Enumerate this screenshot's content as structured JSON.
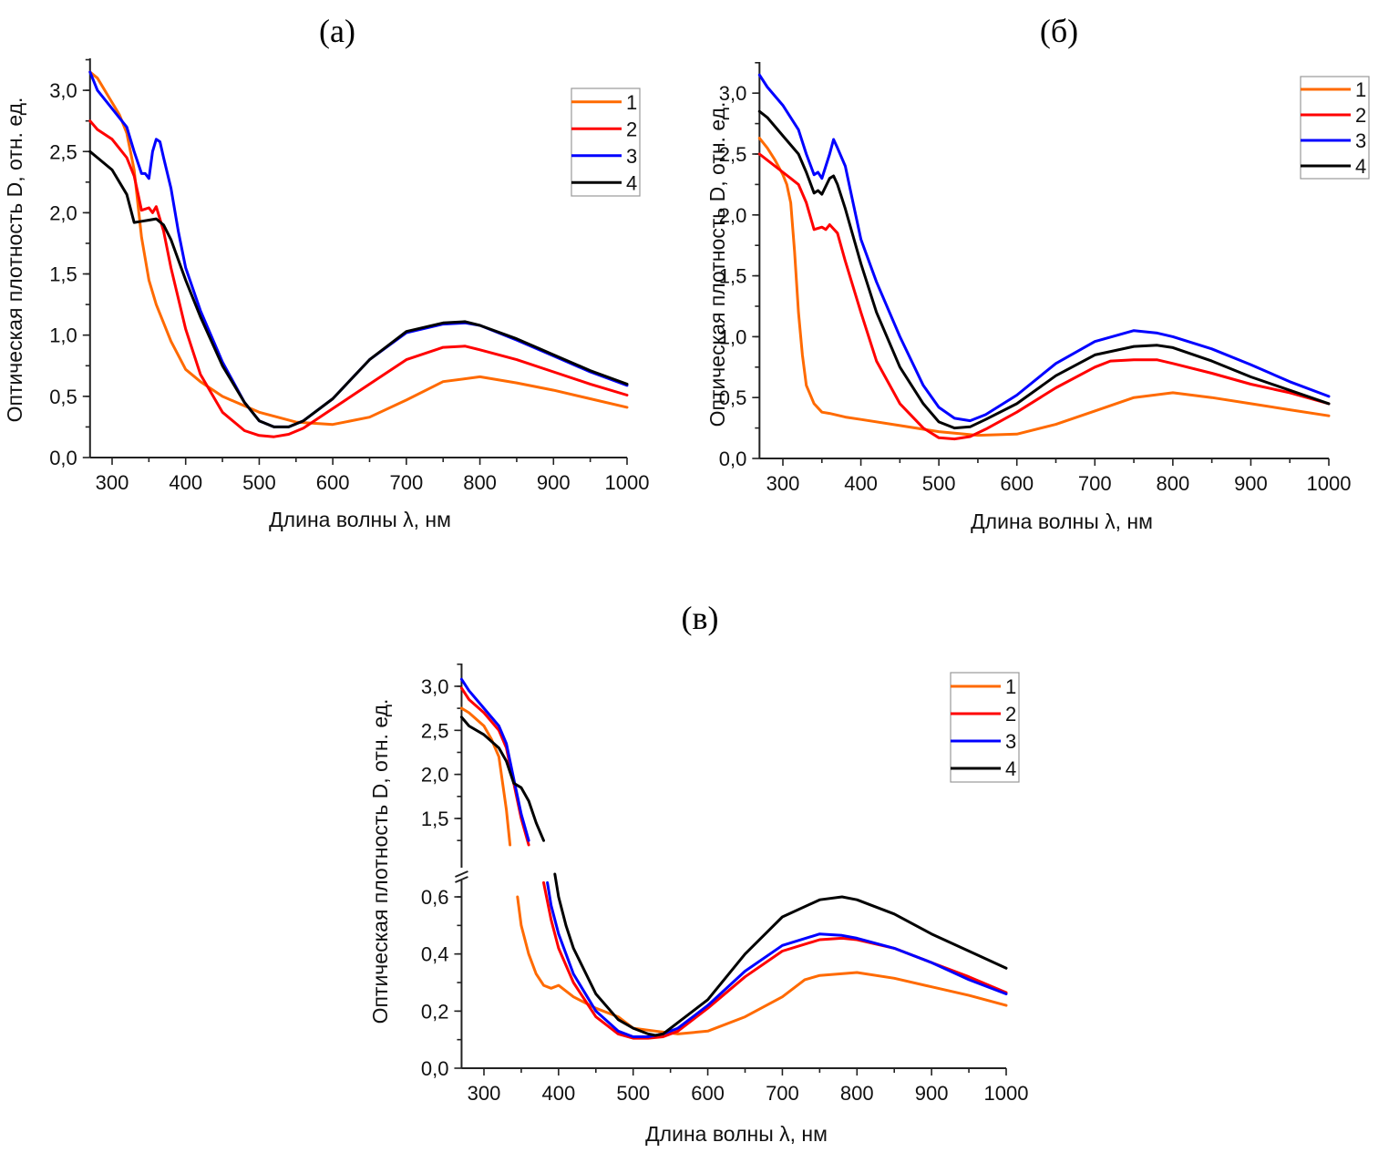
{
  "figure": {
    "colors": {
      "1": "#ff6a00",
      "2": "#ff0000",
      "3": "#0000ff",
      "4": "#000000"
    }
  },
  "chart_data": [
    {
      "type": "line",
      "panel_label": "(а)",
      "xlabel": "Длина волны λ, нм",
      "ylabel": "Оптическая плотность D, отн. ед.",
      "xlim": [
        270,
        1000
      ],
      "ylim": [
        0,
        3.25
      ],
      "xticks": [
        300,
        400,
        500,
        600,
        700,
        800,
        900,
        1000
      ],
      "xtick_labels": [
        "300",
        "400",
        "500",
        "600",
        "700",
        "800",
        "900",
        "1000"
      ],
      "yticks": [
        0,
        0.5,
        1.0,
        1.5,
        2.0,
        2.5,
        3.0
      ],
      "ytick_labels": [
        "0,0",
        "0,5",
        "1,0",
        "1,5",
        "2,0",
        "2,5",
        "3,0"
      ],
      "legend": [
        "1",
        "2",
        "3",
        "4"
      ],
      "legend_position": "top-right",
      "series": [
        {
          "name": "1",
          "x": [
            270,
            280,
            300,
            310,
            320,
            330,
            340,
            350,
            360,
            380,
            400,
            420,
            450,
            500,
            550,
            600,
            650,
            700,
            750,
            800,
            850,
            900,
            950,
            1000
          ],
          "y": [
            3.15,
            3.1,
            2.9,
            2.8,
            2.65,
            2.35,
            1.8,
            1.45,
            1.25,
            0.95,
            0.72,
            0.62,
            0.5,
            0.37,
            0.29,
            0.27,
            0.33,
            0.47,
            0.62,
            0.66,
            0.61,
            0.55,
            0.48,
            0.41
          ]
        },
        {
          "name": "2",
          "x": [
            270,
            280,
            300,
            320,
            330,
            340,
            350,
            355,
            360,
            370,
            380,
            400,
            420,
            450,
            480,
            500,
            520,
            540,
            560,
            600,
            650,
            700,
            750,
            780,
            800,
            850,
            900,
            950,
            1000
          ],
          "y": [
            2.75,
            2.68,
            2.6,
            2.45,
            2.3,
            2.02,
            2.04,
            2.0,
            2.05,
            1.85,
            1.55,
            1.05,
            0.68,
            0.37,
            0.22,
            0.18,
            0.17,
            0.19,
            0.24,
            0.4,
            0.6,
            0.8,
            0.9,
            0.91,
            0.88,
            0.8,
            0.7,
            0.6,
            0.51
          ]
        },
        {
          "name": "3",
          "x": [
            270,
            280,
            300,
            320,
            330,
            340,
            345,
            350,
            355,
            360,
            365,
            370,
            380,
            390,
            400,
            420,
            450,
            480,
            500,
            520,
            540,
            560,
            600,
            650,
            700,
            750,
            780,
            800,
            850,
            900,
            950,
            1000
          ],
          "y": [
            3.15,
            3.0,
            2.85,
            2.7,
            2.5,
            2.32,
            2.32,
            2.28,
            2.5,
            2.6,
            2.58,
            2.45,
            2.2,
            1.85,
            1.55,
            1.2,
            0.78,
            0.45,
            0.3,
            0.25,
            0.25,
            0.3,
            0.48,
            0.8,
            1.02,
            1.09,
            1.1,
            1.08,
            0.96,
            0.83,
            0.7,
            0.59
          ]
        },
        {
          "name": "4",
          "x": [
            270,
            280,
            300,
            320,
            330,
            340,
            350,
            360,
            370,
            380,
            400,
            420,
            450,
            480,
            500,
            520,
            540,
            560,
            600,
            650,
            700,
            750,
            780,
            800,
            850,
            900,
            950,
            1000
          ],
          "y": [
            2.5,
            2.45,
            2.35,
            2.15,
            1.92,
            1.93,
            1.94,
            1.95,
            1.9,
            1.78,
            1.45,
            1.15,
            0.75,
            0.45,
            0.3,
            0.25,
            0.25,
            0.3,
            0.48,
            0.8,
            1.03,
            1.1,
            1.11,
            1.08,
            0.97,
            0.84,
            0.71,
            0.6
          ]
        }
      ]
    },
    {
      "type": "line",
      "panel_label": "(б)",
      "xlabel": "Длина волны λ, нм",
      "ylabel": "Оптическая плотность D, отн. ед.",
      "xlim": [
        270,
        1000
      ],
      "ylim": [
        0,
        3.25
      ],
      "xticks": [
        300,
        400,
        500,
        600,
        700,
        800,
        900,
        1000
      ],
      "xtick_labels": [
        "300",
        "400",
        "500",
        "600",
        "700",
        "800",
        "900",
        "1000"
      ],
      "yticks": [
        0,
        0.5,
        1.0,
        1.5,
        2.0,
        2.5,
        3.0
      ],
      "ytick_labels": [
        "0,0",
        "0,5",
        "1,0",
        "1,5",
        "2,0",
        "2,5",
        "3,0"
      ],
      "legend": [
        "1",
        "2",
        "3",
        "4"
      ],
      "legend_position": "top-right",
      "series": [
        {
          "name": "1",
          "x": [
            270,
            280,
            290,
            300,
            305,
            310,
            315,
            320,
            325,
            330,
            340,
            350,
            360,
            380,
            400,
            450,
            500,
            550,
            600,
            650,
            700,
            750,
            800,
            850,
            900,
            950,
            1000
          ],
          "y": [
            2.63,
            2.55,
            2.45,
            2.33,
            2.25,
            2.1,
            1.7,
            1.2,
            0.85,
            0.6,
            0.45,
            0.38,
            0.37,
            0.34,
            0.32,
            0.27,
            0.22,
            0.19,
            0.2,
            0.28,
            0.39,
            0.5,
            0.54,
            0.5,
            0.45,
            0.4,
            0.35
          ]
        },
        {
          "name": "2",
          "x": [
            270,
            280,
            300,
            310,
            320,
            330,
            340,
            350,
            355,
            360,
            370,
            380,
            400,
            420,
            450,
            480,
            500,
            520,
            540,
            560,
            600,
            650,
            700,
            720,
            750,
            780,
            800,
            850,
            900,
            950,
            1000
          ],
          "y": [
            2.5,
            2.45,
            2.35,
            2.3,
            2.25,
            2.1,
            1.88,
            1.9,
            1.88,
            1.92,
            1.85,
            1.62,
            1.2,
            0.8,
            0.45,
            0.25,
            0.17,
            0.16,
            0.18,
            0.24,
            0.38,
            0.58,
            0.75,
            0.8,
            0.81,
            0.81,
            0.78,
            0.7,
            0.61,
            0.54,
            0.45
          ]
        },
        {
          "name": "4",
          "x": [
            270,
            280,
            300,
            320,
            330,
            340,
            345,
            350,
            360,
            365,
            370,
            380,
            400,
            420,
            450,
            480,
            500,
            520,
            540,
            560,
            600,
            650,
            700,
            750,
            780,
            800,
            850,
            900,
            950,
            1000
          ],
          "y": [
            2.85,
            2.8,
            2.65,
            2.5,
            2.35,
            2.18,
            2.2,
            2.17,
            2.3,
            2.32,
            2.25,
            2.05,
            1.6,
            1.2,
            0.75,
            0.45,
            0.3,
            0.25,
            0.26,
            0.32,
            0.45,
            0.68,
            0.85,
            0.92,
            0.93,
            0.91,
            0.8,
            0.67,
            0.56,
            0.45
          ]
        },
        {
          "name": "3",
          "x": [
            270,
            280,
            300,
            320,
            330,
            340,
            345,
            350,
            360,
            365,
            370,
            380,
            390,
            400,
            420,
            450,
            480,
            500,
            520,
            540,
            560,
            600,
            650,
            700,
            750,
            780,
            800,
            850,
            900,
            950,
            1000
          ],
          "y": [
            3.15,
            3.05,
            2.9,
            2.7,
            2.5,
            2.33,
            2.35,
            2.3,
            2.5,
            2.62,
            2.55,
            2.4,
            2.1,
            1.8,
            1.45,
            1.0,
            0.6,
            0.42,
            0.33,
            0.31,
            0.36,
            0.52,
            0.78,
            0.96,
            1.05,
            1.03,
            1.0,
            0.9,
            0.77,
            0.63,
            0.51
          ]
        }
      ]
    },
    {
      "type": "line",
      "panel_label": "(в)",
      "xlabel": "Длина волны λ, нм",
      "ylabel": "Оптическая плотность D, отн. ед.",
      "xlim": [
        270,
        1000
      ],
      "y_axis_break": true,
      "ylim_lower": [
        0,
        0.7
      ],
      "ylim_upper": [
        1.1,
        3.25
      ],
      "xticks": [
        300,
        400,
        500,
        600,
        700,
        800,
        900,
        1000
      ],
      "xtick_labels": [
        "300",
        "400",
        "500",
        "600",
        "700",
        "800",
        "900",
        "1000"
      ],
      "yticks_lower": [
        0,
        0.2,
        0.4,
        0.6
      ],
      "ytick_labels_lower": [
        "0,0",
        "0,2",
        "0,4",
        "0,6"
      ],
      "yticks_upper": [
        1.5,
        2.0,
        2.5,
        3.0
      ],
      "ytick_labels_upper": [
        "1,5",
        "2,0",
        "2,5",
        "3,0"
      ],
      "legend": [
        "1",
        "2",
        "3",
        "4"
      ],
      "legend_position": "top-right",
      "series": [
        {
          "name": "1",
          "x": [
            270,
            280,
            300,
            310,
            320,
            330,
            335,
            340,
            345,
            350,
            360,
            370,
            380,
            390,
            400,
            420,
            450,
            480,
            500,
            530,
            560,
            600,
            650,
            700,
            730,
            750,
            800,
            850,
            900,
            950,
            1000
          ],
          "y": [
            2.75,
            2.7,
            2.55,
            2.4,
            2.2,
            1.6,
            1.2,
            0.8,
            0.6,
            0.5,
            0.4,
            0.33,
            0.29,
            0.28,
            0.29,
            0.25,
            0.21,
            0.18,
            0.14,
            0.13,
            0.12,
            0.13,
            0.18,
            0.25,
            0.31,
            0.325,
            0.335,
            0.315,
            0.285,
            0.255,
            0.22
          ]
        },
        {
          "name": "2",
          "x": [
            270,
            280,
            300,
            320,
            330,
            340,
            350,
            360,
            370,
            375,
            380,
            390,
            400,
            420,
            450,
            480,
            500,
            520,
            540,
            560,
            600,
            650,
            700,
            750,
            780,
            800,
            850,
            900,
            950,
            1000
          ],
          "y": [
            2.98,
            2.85,
            2.7,
            2.5,
            2.3,
            1.9,
            1.5,
            1.2,
            1.05,
            0.75,
            0.65,
            0.52,
            0.42,
            0.3,
            0.18,
            0.12,
            0.105,
            0.105,
            0.11,
            0.13,
            0.21,
            0.32,
            0.41,
            0.45,
            0.455,
            0.45,
            0.42,
            0.37,
            0.32,
            0.265
          ]
        },
        {
          "name": "3",
          "x": [
            270,
            280,
            300,
            320,
            330,
            340,
            350,
            360,
            370,
            380,
            385,
            390,
            400,
            420,
            450,
            480,
            500,
            520,
            540,
            560,
            600,
            650,
            700,
            750,
            780,
            800,
            850,
            900,
            950,
            1000
          ],
          "y": [
            3.08,
            2.95,
            2.75,
            2.55,
            2.35,
            1.95,
            1.55,
            1.25,
            1.05,
            0.72,
            0.65,
            0.57,
            0.47,
            0.33,
            0.2,
            0.13,
            0.11,
            0.11,
            0.12,
            0.14,
            0.22,
            0.34,
            0.43,
            0.47,
            0.465,
            0.455,
            0.42,
            0.37,
            0.31,
            0.26
          ]
        },
        {
          "name": "4",
          "x": [
            270,
            280,
            300,
            320,
            330,
            340,
            350,
            360,
            370,
            380,
            390,
            395,
            400,
            410,
            420,
            450,
            480,
            500,
            520,
            530,
            540,
            560,
            600,
            650,
            700,
            750,
            780,
            800,
            850,
            900,
            950,
            1000
          ],
          "y": [
            2.65,
            2.55,
            2.45,
            2.3,
            2.15,
            1.9,
            1.85,
            1.7,
            1.45,
            1.25,
            1.05,
            0.68,
            0.6,
            0.5,
            0.42,
            0.26,
            0.17,
            0.14,
            0.12,
            0.115,
            0.12,
            0.16,
            0.24,
            0.4,
            0.53,
            0.59,
            0.6,
            0.59,
            0.54,
            0.47,
            0.41,
            0.35
          ]
        }
      ]
    }
  ]
}
